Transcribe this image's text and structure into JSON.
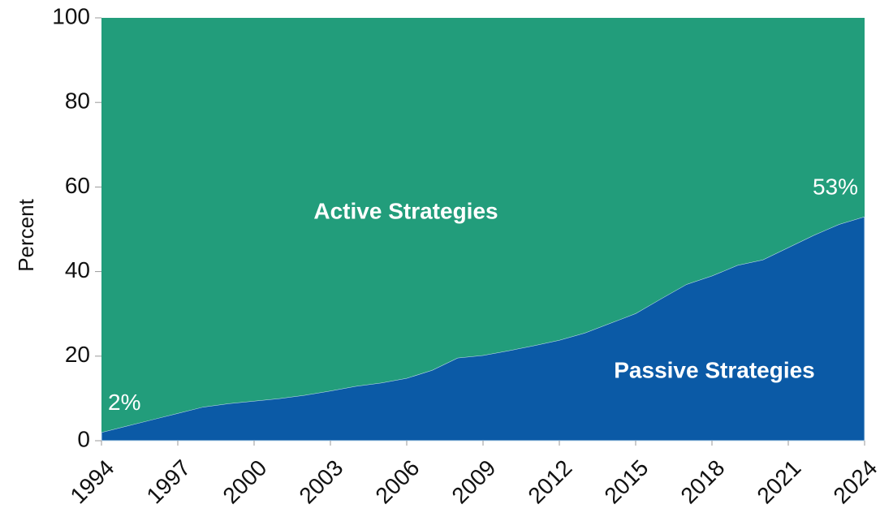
{
  "chart_data": {
    "type": "stacked-area",
    "y_label": "Percent",
    "x": [
      1994,
      1995,
      1996,
      1997,
      1998,
      1999,
      2000,
      2001,
      2002,
      2003,
      2004,
      2005,
      2006,
      2007,
      2008,
      2009,
      2010,
      2011,
      2012,
      2013,
      2014,
      2015,
      2016,
      2017,
      2018,
      2019,
      2020,
      2021,
      2022,
      2023,
      2024
    ],
    "series": [
      {
        "name": "Passive Strategies",
        "color": "#0b5aa6",
        "values": [
          2,
          3.5,
          5,
          6.5,
          8,
          8.8,
          9.4,
          10,
          10.8,
          11.8,
          12.9,
          13.7,
          14.8,
          16.7,
          19.6,
          20.2,
          21.3,
          22.5,
          23.8,
          25.5,
          27.8,
          30.1,
          33.6,
          37,
          39,
          41.5,
          42.8,
          45.7,
          48.6,
          51.2,
          53
        ],
        "value_labels": [
          "2%",
          null,
          null,
          null,
          null,
          null,
          null,
          null,
          null,
          null,
          null,
          null,
          null,
          null,
          null,
          null,
          null,
          null,
          null,
          null,
          null,
          null,
          null,
          null,
          null,
          null,
          null,
          null,
          null,
          null,
          "53%"
        ]
      },
      {
        "name": "Active Strategies",
        "color": "#229d7b",
        "values": [
          98,
          96.5,
          95,
          93.5,
          92,
          91.2,
          90.6,
          90,
          89.2,
          88.2,
          87.1,
          86.3,
          85.2,
          83.3,
          80.4,
          79.8,
          78.7,
          77.5,
          76.2,
          74.5,
          72.2,
          69.9,
          66.4,
          63,
          61,
          58.5,
          57.2,
          54.3,
          51.4,
          48.8,
          47
        ]
      }
    ],
    "xlim": [
      1994,
      2024
    ],
    "xticks": [
      1994,
      1997,
      2000,
      2003,
      2006,
      2009,
      2012,
      2015,
      2018,
      2021,
      2024
    ],
    "ylim": [
      0,
      100
    ],
    "yticks": [
      0,
      20,
      40,
      60,
      80,
      100
    ],
    "grid": false
  }
}
